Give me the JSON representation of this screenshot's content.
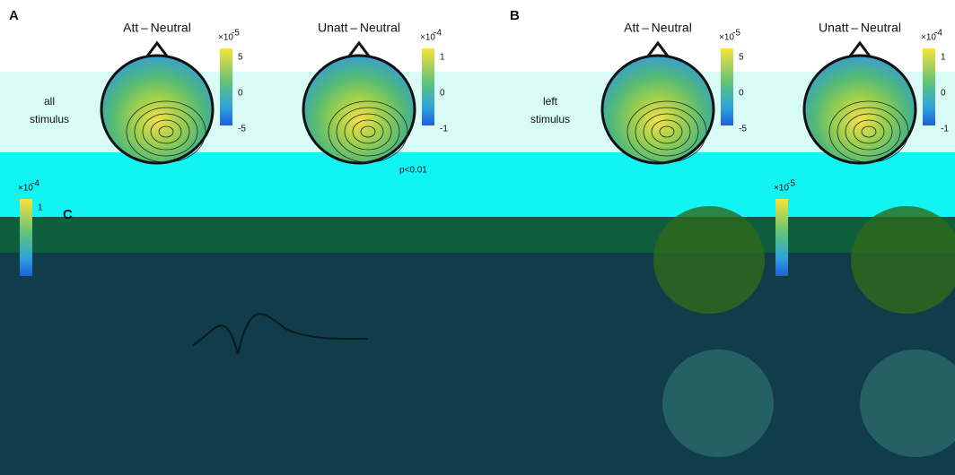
{
  "panels": [
    {
      "label": "A",
      "row_label": [
        "all",
        "stimulus"
      ],
      "maps": [
        {
          "title": "Att – Neutral",
          "scale": {
            "base": "×10",
            "exponent": "-5",
            "ticks": [
              "5",
              "0",
              "-5"
            ]
          }
        },
        {
          "title": "Unatt – Neutral",
          "scale": {
            "base": "×10",
            "exponent": "-4",
            "ticks": [
              "1",
              "0",
              "-1"
            ]
          },
          "annotation": "p<0.01"
        }
      ]
    },
    {
      "label": "B",
      "row_label": [
        "left",
        "stimulus"
      ],
      "maps": [
        {
          "title": "Att – Neutral",
          "scale": {
            "base": "×10",
            "exponent": "-5",
            "ticks": [
              "5",
              "0",
              "-5"
            ]
          }
        },
        {
          "title": "Unatt – Neutral",
          "scale": {
            "base": "×10",
            "exponent": "-4",
            "ticks": [
              "1",
              "0",
              "-1"
            ]
          }
        }
      ]
    }
  ],
  "panel_c": {
    "label": "C",
    "scales": [
      {
        "base": "×10",
        "exponent": "-4",
        "ticks": [
          "1"
        ]
      },
      {
        "base": "×10",
        "exponent": "-5"
      }
    ]
  }
}
